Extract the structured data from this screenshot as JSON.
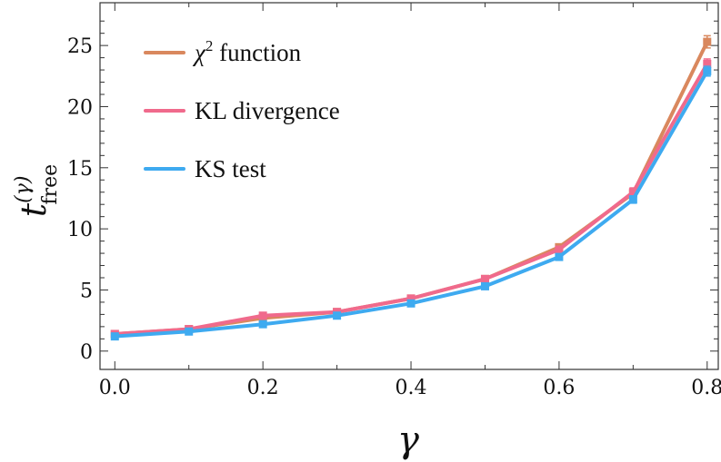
{
  "chart_data": {
    "type": "line",
    "x": [
      0.0,
      0.1,
      0.2,
      0.3,
      0.4,
      0.5,
      0.6,
      0.7,
      0.8
    ],
    "xlim": [
      -0.02,
      0.815
    ],
    "ylim": [
      -1.5,
      28.5
    ],
    "x_ticks": [
      0.0,
      0.2,
      0.4,
      0.6,
      0.8
    ],
    "x_tick_labels": [
      "0.0",
      "0.2",
      "0.4",
      "0.6",
      "0.8"
    ],
    "y_ticks": [
      0,
      5,
      10,
      15,
      20,
      25
    ],
    "y_tick_labels": [
      "0",
      "5",
      "10",
      "15",
      "20",
      "25"
    ],
    "xlabel": "γ",
    "ylabel": {
      "base": "t",
      "superscript": "(γ)",
      "subscript": "free"
    },
    "grid": false,
    "legend_position": "top-left",
    "series": [
      {
        "name": "χ² function",
        "name_base": "χ",
        "name_superscript": "2",
        "name_rest": " function",
        "color": "#d9885e",
        "values": [
          1.4,
          1.8,
          2.7,
          3.2,
          4.3,
          5.9,
          8.5,
          12.9,
          25.3
        ],
        "errors": [
          0.1,
          0.1,
          0.15,
          0.15,
          0.15,
          0.2,
          0.25,
          0.3,
          0.5
        ]
      },
      {
        "name": "KL divergence",
        "color": "#f06a8c",
        "values": [
          1.4,
          1.8,
          2.9,
          3.2,
          4.3,
          5.9,
          8.3,
          13.0,
          23.5
        ],
        "errors": [
          0.1,
          0.1,
          0.2,
          0.15,
          0.15,
          0.2,
          0.25,
          0.35,
          0.4
        ]
      },
      {
        "name": "KS test",
        "color": "#3eaaf0",
        "values": [
          1.2,
          1.6,
          2.2,
          2.9,
          3.9,
          5.3,
          7.7,
          12.4,
          22.9
        ],
        "errors": [
          0.1,
          0.1,
          0.15,
          0.15,
          0.15,
          0.2,
          0.2,
          0.3,
          0.4
        ]
      }
    ]
  }
}
